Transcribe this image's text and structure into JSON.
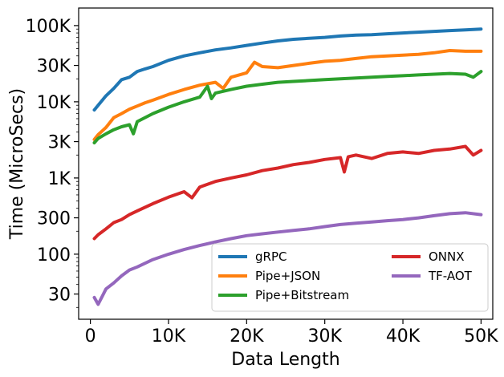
{
  "chart_data": {
    "type": "line",
    "title": "",
    "xlabel": "Data Length",
    "ylabel": "Time (MicroSecs)",
    "xscale": "linear",
    "yscale": "log",
    "xlim": [
      -1500,
      51500
    ],
    "ylim": [
      14,
      170000
    ],
    "xticks": [
      {
        "value": 0,
        "label": "0"
      },
      {
        "value": 10000,
        "label": "10K"
      },
      {
        "value": 20000,
        "label": "20K"
      },
      {
        "value": 30000,
        "label": "30K"
      },
      {
        "value": 40000,
        "label": "40K"
      },
      {
        "value": 50000,
        "label": "50K"
      }
    ],
    "yticks": [
      {
        "value": 30,
        "label": "30"
      },
      {
        "value": 100,
        "label": "100"
      },
      {
        "value": 300,
        "label": "300"
      },
      {
        "value": 1000,
        "label": "1K"
      },
      {
        "value": 3000,
        "label": "3K"
      },
      {
        "value": 10000,
        "label": "10K"
      },
      {
        "value": 30000,
        "label": "30K"
      },
      {
        "value": 100000,
        "label": "100K"
      }
    ],
    "legend_position": "lower-right",
    "legend_columns": 2,
    "series": [
      {
        "name": "gRPC",
        "color": "#1f77b4",
        "x": [
          500,
          1000,
          2000,
          3000,
          4000,
          5000,
          6000,
          7000,
          8000,
          10000,
          12000,
          14000,
          16000,
          18000,
          20000,
          22000,
          24000,
          26000,
          28000,
          30000,
          32000,
          34000,
          36000,
          38000,
          40000,
          42000,
          44000,
          46000,
          48000,
          50000
        ],
        "values": [
          7800,
          9000,
          12000,
          15000,
          19500,
          21000,
          25000,
          27000,
          29000,
          35000,
          40000,
          44000,
          48000,
          51000,
          55000,
          59000,
          63000,
          66000,
          68000,
          70000,
          73000,
          75000,
          76000,
          78000,
          80000,
          82000,
          84000,
          86000,
          88000,
          90000
        ]
      },
      {
        "name": "Pipe+JSON",
        "color": "#ff7f0e",
        "x": [
          500,
          1000,
          2000,
          3000,
          4000,
          5000,
          6000,
          7000,
          8000,
          10000,
          12000,
          14000,
          16000,
          17000,
          18000,
          20000,
          21000,
          22000,
          24000,
          26000,
          28000,
          30000,
          32000,
          34000,
          36000,
          38000,
          40000,
          42000,
          44000,
          46000,
          48000,
          50000
        ],
        "values": [
          3200,
          3700,
          4600,
          6200,
          7000,
          8000,
          8800,
          9700,
          10500,
          12500,
          14500,
          16500,
          18000,
          15000,
          21000,
          24000,
          33000,
          29000,
          28000,
          30000,
          32000,
          34000,
          35000,
          37000,
          39000,
          40000,
          41000,
          42000,
          44000,
          47000,
          46000,
          46000
        ]
      },
      {
        "name": "Pipe+Bitstream",
        "color": "#2ca02c",
        "x": [
          500,
          1000,
          2000,
          3000,
          4000,
          5000,
          5500,
          6000,
          8000,
          10000,
          12000,
          14000,
          15000,
          15500,
          16000,
          18000,
          20000,
          22000,
          24000,
          26000,
          28000,
          30000,
          32000,
          34000,
          36000,
          38000,
          40000,
          42000,
          44000,
          46000,
          48000,
          49000,
          50000
        ],
        "values": [
          2900,
          3300,
          3800,
          4300,
          4700,
          5000,
          3800,
          5500,
          7000,
          8500,
          10000,
          11500,
          16000,
          11000,
          13000,
          14500,
          16000,
          17000,
          18000,
          18500,
          19000,
          19500,
          20000,
          20500,
          21000,
          21500,
          22000,
          22500,
          23000,
          23500,
          23000,
          21000,
          25000
        ]
      },
      {
        "name": "ONNX",
        "color": "#d62728",
        "x": [
          500,
          1000,
          2000,
          3000,
          4000,
          5000,
          6000,
          8000,
          10000,
          12000,
          13000,
          14000,
          16000,
          18000,
          20000,
          22000,
          24000,
          26000,
          28000,
          30000,
          32000,
          32500,
          33000,
          34000,
          36000,
          38000,
          40000,
          42000,
          44000,
          46000,
          48000,
          49000,
          50000
        ],
        "values": [
          160,
          180,
          215,
          260,
          285,
          330,
          370,
          460,
          560,
          660,
          550,
          760,
          900,
          1000,
          1100,
          1250,
          1350,
          1500,
          1600,
          1750,
          1850,
          1200,
          1900,
          2000,
          1800,
          2100,
          2200,
          2100,
          2300,
          2400,
          2600,
          2000,
          2300
        ]
      },
      {
        "name": "TF-AOT",
        "color": "#9467bd",
        "x": [
          500,
          1000,
          2000,
          3000,
          4000,
          5000,
          6000,
          8000,
          10000,
          12000,
          14000,
          16000,
          18000,
          20000,
          22000,
          24000,
          26000,
          28000,
          30000,
          32000,
          34000,
          36000,
          38000,
          40000,
          42000,
          44000,
          46000,
          48000,
          50000
        ],
        "values": [
          27,
          22,
          35,
          42,
          52,
          62,
          68,
          85,
          100,
          115,
          130,
          145,
          160,
          175,
          185,
          195,
          205,
          215,
          230,
          245,
          255,
          265,
          275,
          285,
          300,
          320,
          340,
          350,
          330
        ]
      }
    ]
  }
}
